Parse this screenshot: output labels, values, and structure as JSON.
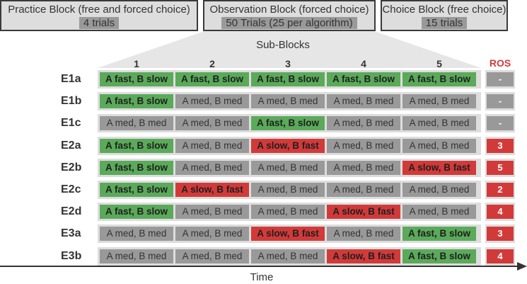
{
  "blocks": [
    {
      "title": "Practice Block (free and forced choice)",
      "count": "4 trials"
    },
    {
      "title": "Observation Block (forced choice)",
      "count": "50 Trials (25 per algorithm)"
    },
    {
      "title": "Choice Block (free choice)",
      "count": "15 trials"
    }
  ],
  "sub_blocks_label": "Sub-Blocks",
  "columns": [
    "1",
    "2",
    "3",
    "4",
    "5"
  ],
  "ros_header": "ROS",
  "colors": {
    "fast": "#5aaa5a",
    "slow": "#d23a3a",
    "medium": "#999999",
    "row_background": "#dddddd"
  },
  "rows": [
    {
      "label": "E1a",
      "cells": [
        "A fast, B slow",
        "A fast, B slow",
        "A fast, B slow",
        "A fast, B slow",
        "A fast, B slow"
      ],
      "ros": "-"
    },
    {
      "label": "E1b",
      "cells": [
        "A fast, B slow",
        "A med, B med",
        "A med, B med",
        "A med, B med",
        "A med, B med"
      ],
      "ros": "-"
    },
    {
      "label": "E1c",
      "cells": [
        "A med, B med",
        "A med, B med",
        "A fast, B slow",
        "A med, B med",
        "A med, B med"
      ],
      "ros": "-"
    },
    {
      "label": "E2a",
      "cells": [
        "A fast, B slow",
        "A med, B med",
        "A slow, B fast",
        "A med, B med",
        "A med, B med"
      ],
      "ros": "3"
    },
    {
      "label": "E2b",
      "cells": [
        "A fast, B slow",
        "A med, B med",
        "A med, B med",
        "A med, B med",
        "A slow, B fast"
      ],
      "ros": "5"
    },
    {
      "label": "E2c",
      "cells": [
        "A fast, B slow",
        "A slow, B fast",
        "A med, B med",
        "A med, B med",
        "A med, B med"
      ],
      "ros": "2"
    },
    {
      "label": "E2d",
      "cells": [
        "A fast, B slow",
        "A med, B med",
        "A med, B med",
        "A slow, B fast",
        "A med, B med"
      ],
      "ros": "4"
    },
    {
      "label": "E3a",
      "cells": [
        "A med, B med",
        "A med, B med",
        "A slow, B fast",
        "A med, B med",
        "A fast, B slow"
      ],
      "ros": "3"
    },
    {
      "label": "E3b",
      "cells": [
        "A med, B med",
        "A med, B med",
        "A med, B med",
        "A slow, B fast",
        "A fast, B slow"
      ],
      "ros": "4"
    }
  ],
  "time_label": "Time"
}
